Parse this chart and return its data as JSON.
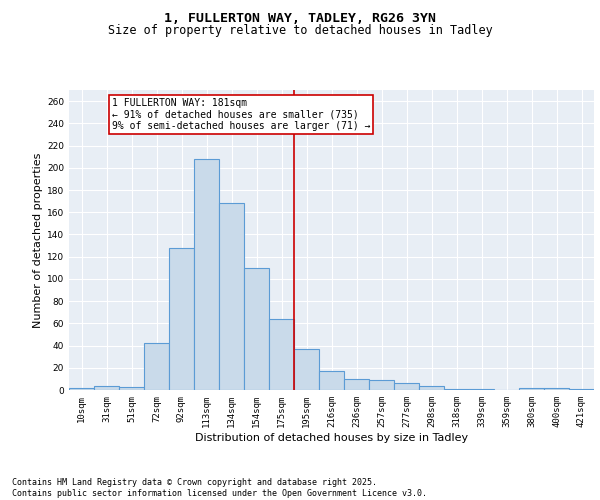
{
  "title": "1, FULLERTON WAY, TADLEY, RG26 3YN",
  "subtitle": "Size of property relative to detached houses in Tadley",
  "xlabel": "Distribution of detached houses by size in Tadley",
  "ylabel": "Number of detached properties",
  "categories": [
    "10sqm",
    "31sqm",
    "51sqm",
    "72sqm",
    "92sqm",
    "113sqm",
    "134sqm",
    "154sqm",
    "175sqm",
    "195sqm",
    "216sqm",
    "236sqm",
    "257sqm",
    "277sqm",
    "298sqm",
    "318sqm",
    "339sqm",
    "359sqm",
    "380sqm",
    "400sqm",
    "421sqm"
  ],
  "values": [
    2,
    4,
    3,
    42,
    128,
    208,
    168,
    110,
    64,
    37,
    17,
    10,
    9,
    6,
    4,
    1,
    1,
    0,
    2,
    2,
    1
  ],
  "bar_color": "#c9daea",
  "bar_edge_color": "#5b9bd5",
  "bar_edge_width": 0.8,
  "vline_x": 8.5,
  "vline_color": "#cc0000",
  "annotation_text": "1 FULLERTON WAY: 181sqm\n← 91% of detached houses are smaller (735)\n9% of semi-detached houses are larger (71) →",
  "annotation_box_color": "#cc0000",
  "ylim": [
    0,
    270
  ],
  "yticks": [
    0,
    20,
    40,
    60,
    80,
    100,
    120,
    140,
    160,
    180,
    200,
    220,
    240,
    260
  ],
  "background_color": "#e8eef5",
  "grid_color": "#ffffff",
  "footer": "Contains HM Land Registry data © Crown copyright and database right 2025.\nContains public sector information licensed under the Open Government Licence v3.0.",
  "title_fontsize": 9.5,
  "subtitle_fontsize": 8.5,
  "ylabel_fontsize": 8,
  "xlabel_fontsize": 8,
  "tick_fontsize": 6.5,
  "annotation_fontsize": 7,
  "footer_fontsize": 6
}
